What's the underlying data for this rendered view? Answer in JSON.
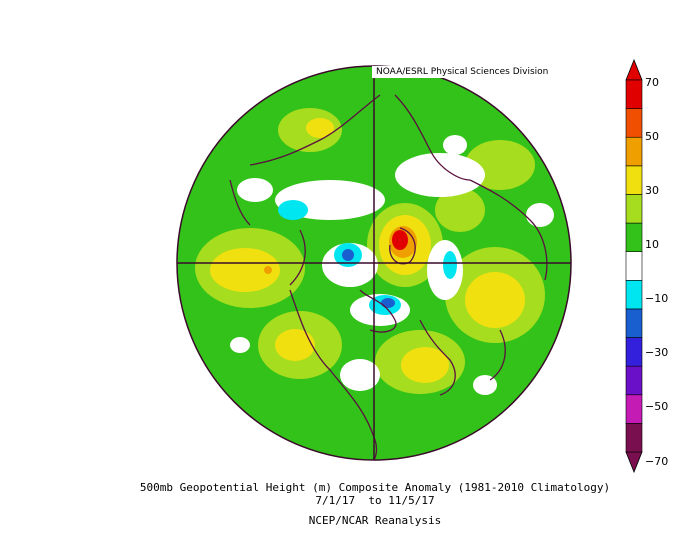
{
  "credit": "NOAA/ESRL Physical Sciences Division",
  "colorbar": {
    "ticks": [
      "70",
      "50",
      "30",
      "10",
      "−10",
      "−30",
      "−50",
      "−70"
    ],
    "colors": [
      "#7a0f4f",
      "#c41bb5",
      "#6a10c9",
      "#3320dc",
      "#1a5fd0",
      "#00e6f0",
      "#ffffff",
      "#33c219",
      "#a6dd1f",
      "#f0e010",
      "#f09f00",
      "#f04e00",
      "#e10000"
    ]
  },
  "caption": {
    "line1": "500mb Geopotential Height (m) Composite Anomaly (1981-2010 Climatology)",
    "line2": "7/1/17  to 11/5/17",
    "line3": "NCEP/NCAR Reanalysis"
  }
}
